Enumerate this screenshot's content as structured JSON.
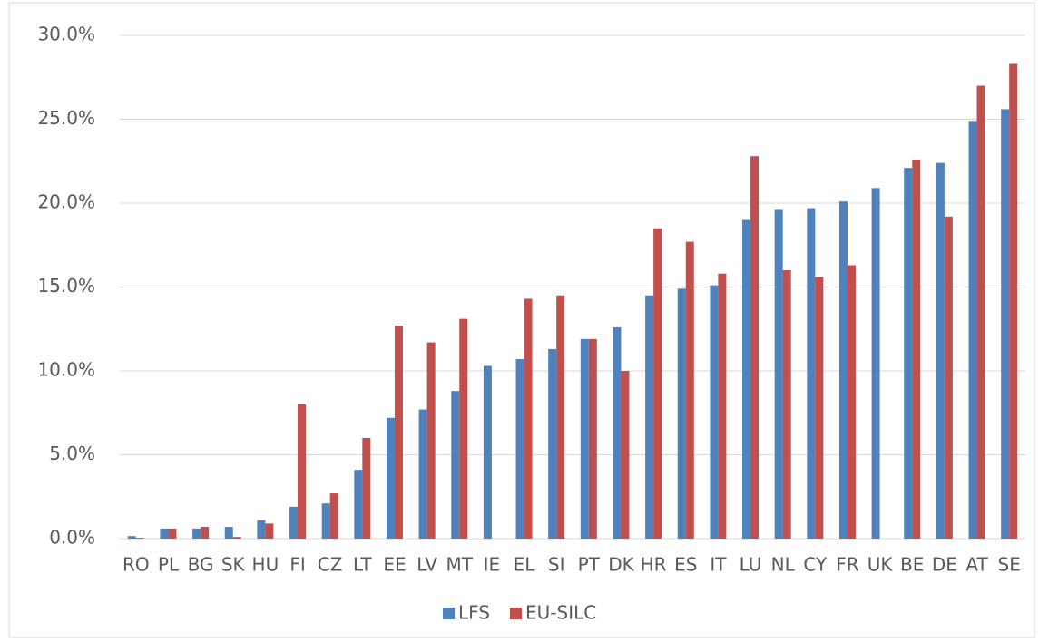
{
  "chart_data": {
    "type": "bar",
    "categories": [
      "RO",
      "PL",
      "BG",
      "SK",
      "HU",
      "FI",
      "CZ",
      "LT",
      "EE",
      "LV",
      "MT",
      "IE",
      "EL",
      "SI",
      "PT",
      "DK",
      "HR",
      "ES",
      "IT",
      "LU",
      "NL",
      "CY",
      "FR",
      "UK",
      "BE",
      "DE",
      "AT",
      "SE"
    ],
    "series": [
      {
        "name": "LFS",
        "color": "#4f81bd",
        "values": [
          0.15,
          0.6,
          0.6,
          0.7,
          1.1,
          1.9,
          2.1,
          4.1,
          7.2,
          7.7,
          8.8,
          10.3,
          10.7,
          11.3,
          11.9,
          12.6,
          14.5,
          14.9,
          15.1,
          19.0,
          19.6,
          19.7,
          20.1,
          20.9,
          22.1,
          22.4,
          24.9,
          25.6
        ]
      },
      {
        "name": "EU-SILC",
        "color": "#c0504d",
        "values": [
          0.05,
          0.6,
          0.7,
          0.1,
          0.9,
          8.0,
          2.7,
          6.0,
          12.7,
          11.7,
          13.1,
          null,
          14.3,
          14.5,
          11.9,
          10.0,
          18.5,
          17.7,
          15.8,
          22.8,
          16.0,
          15.6,
          16.3,
          null,
          22.6,
          19.2,
          27.0,
          28.3
        ]
      }
    ],
    "ylim": [
      0,
      30
    ],
    "yticks": [
      {
        "value": 0,
        "label": "0.0%"
      },
      {
        "value": 5,
        "label": "5.0%"
      },
      {
        "value": 10,
        "label": "10.0%"
      },
      {
        "value": 15,
        "label": "15.0%"
      },
      {
        "value": 20,
        "label": "20.0%"
      },
      {
        "value": 25,
        "label": "25.0%"
      },
      {
        "value": 30,
        "label": "30.0%"
      }
    ],
    "grid": true,
    "legend": "bottom"
  }
}
